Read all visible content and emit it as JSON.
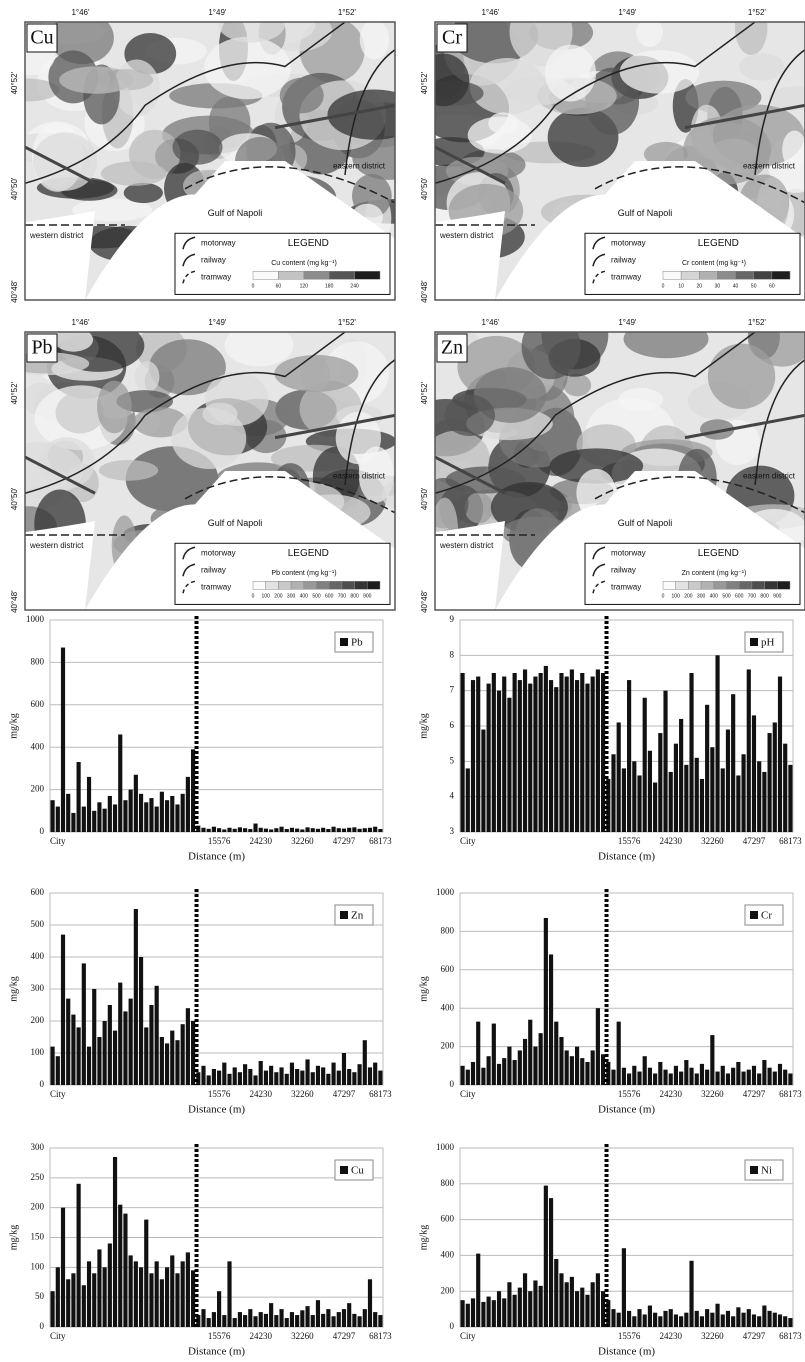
{
  "maps": [
    {
      "label": "Cu",
      "x_ticks": [
        "1°46'",
        "1°49'",
        "1°52'"
      ],
      "y_ticks": [
        "40°52'",
        "40°50'",
        "40°48'"
      ],
      "places": [
        "eastern district",
        "western district",
        "Gulf of Napoli"
      ],
      "legend": {
        "title": "LEGEND",
        "items": [
          "motorway",
          "railway",
          "tramway"
        ],
        "scale_title": "Cu content (mg kg⁻¹)",
        "scale": [
          "0",
          "60",
          "120",
          "180",
          "240"
        ]
      }
    },
    {
      "label": "Cr",
      "x_ticks": [
        "1°46'",
        "1°49'",
        "1°52'"
      ],
      "y_ticks": [
        "40°52'",
        "40°50'",
        "40°48'"
      ],
      "places": [
        "eastern district",
        "western district",
        "Gulf of Napoli"
      ],
      "legend": {
        "title": "LEGEND",
        "items": [
          "motorway",
          "railway",
          "tramway"
        ],
        "scale_title": "Cr content (mg kg⁻¹)",
        "scale": [
          "0",
          "10",
          "20",
          "30",
          "40",
          "50",
          "60"
        ]
      }
    },
    {
      "label": "Pb",
      "x_ticks": [
        "1°46'",
        "1°49'",
        "1°52'"
      ],
      "y_ticks": [
        "40°52'",
        "40°50'",
        "40°48'"
      ],
      "places": [
        "eastern district",
        "western district",
        "Gulf of Napoli"
      ],
      "legend": {
        "title": "LEGEND",
        "items": [
          "motorway",
          "railway",
          "tramway"
        ],
        "scale_title": "Pb content (mg kg⁻¹)",
        "scale": [
          "0",
          "100",
          "200",
          "300",
          "400",
          "500",
          "600",
          "700",
          "800",
          "900"
        ]
      }
    },
    {
      "label": "Zn",
      "x_ticks": [
        "1°46'",
        "1°49'",
        "1°52'"
      ],
      "y_ticks": [
        "40°52'",
        "40°50'",
        "40°48'"
      ],
      "places": [
        "eastern district",
        "western district",
        "Gulf of Napoli"
      ],
      "legend": {
        "title": "LEGEND",
        "items": [
          "motorway",
          "railway",
          "tramway"
        ],
        "scale_title": "Zn content (mg kg⁻¹)",
        "scale": [
          "0",
          "100",
          "200",
          "300",
          "400",
          "500",
          "600",
          "700",
          "800",
          "900"
        ]
      }
    }
  ],
  "chart_data": [
    {
      "type": "bar",
      "x_label": "Distance (m)",
      "y_label": "mg/kg",
      "ylim": [
        0,
        1000
      ],
      "yticks": [
        0,
        200,
        400,
        600,
        800,
        1000
      ],
      "grid": true,
      "categories": [
        null,
        "City",
        null,
        null,
        null,
        null,
        null,
        null,
        null,
        null,
        null,
        null,
        null,
        null,
        null,
        null,
        null,
        null,
        null,
        null,
        null,
        null,
        null,
        null,
        null,
        null,
        null,
        null,
        null,
        null,
        null,
        null,
        "15576",
        null,
        null,
        null,
        null,
        null,
        null,
        null,
        "24230",
        null,
        null,
        null,
        null,
        null,
        null,
        null,
        "32260",
        null,
        null,
        null,
        null,
        null,
        null,
        null,
        "47297",
        null,
        null,
        null,
        null,
        null,
        null,
        "68173"
      ],
      "series": [
        {
          "name": "Pb",
          "color": "#111111",
          "values": [
            150,
            120,
            870,
            180,
            90,
            330,
            120,
            260,
            100,
            140,
            110,
            170,
            130,
            460,
            150,
            200,
            270,
            180,
            140,
            160,
            120,
            190,
            150,
            170,
            130,
            180,
            260,
            390,
            30,
            20,
            15,
            25,
            18,
            12,
            20,
            15,
            22,
            18,
            14,
            40,
            20,
            16,
            12,
            18,
            25,
            14,
            20,
            16,
            12,
            22,
            18,
            15,
            20,
            14,
            25,
            18,
            16,
            20,
            22,
            15,
            18,
            20,
            25,
            14
          ]
        }
      ]
    },
    {
      "type": "bar",
      "x_label": "Distance (m)",
      "y_label": "mg/kg",
      "ylim": [
        3,
        9
      ],
      "yticks": [
        3,
        4,
        5,
        6,
        7,
        8,
        9
      ],
      "grid": true,
      "categories": [
        null,
        "City",
        null,
        null,
        null,
        null,
        null,
        null,
        null,
        null,
        null,
        null,
        null,
        null,
        null,
        null,
        null,
        null,
        null,
        null,
        null,
        null,
        null,
        null,
        null,
        null,
        null,
        null,
        null,
        null,
        null,
        null,
        "15576",
        null,
        null,
        null,
        null,
        null,
        null,
        null,
        "24230",
        null,
        null,
        null,
        null,
        null,
        null,
        null,
        "32260",
        null,
        null,
        null,
        null,
        null,
        null,
        null,
        "47297",
        null,
        null,
        null,
        null,
        null,
        null,
        "68173"
      ],
      "series": [
        {
          "name": "pH",
          "color": "#111111",
          "values": [
            7.5,
            4.8,
            7.3,
            7.4,
            5.9,
            7.2,
            7.5,
            7.0,
            7.4,
            6.8,
            7.5,
            7.3,
            7.6,
            7.2,
            7.4,
            7.5,
            7.7,
            7.3,
            7.1,
            7.5,
            7.4,
            7.6,
            7.3,
            7.5,
            7.2,
            7.4,
            7.6,
            7.5,
            4.5,
            5.2,
            6.1,
            4.8,
            7.3,
            5.0,
            4.6,
            6.8,
            5.3,
            4.4,
            5.8,
            7.0,
            4.7,
            5.5,
            6.2,
            4.9,
            7.5,
            5.1,
            4.5,
            6.6,
            5.4,
            8.0,
            4.8,
            5.9,
            6.9,
            4.6,
            5.2,
            7.6,
            6.3,
            5.0,
            4.7,
            5.8,
            6.1,
            7.4,
            5.5,
            4.9
          ]
        }
      ]
    },
    {
      "type": "bar",
      "x_label": "Distance (m)",
      "y_label": "mg/kg",
      "ylim": [
        0,
        600
      ],
      "yticks": [
        0,
        100,
        200,
        300,
        400,
        500,
        600
      ],
      "grid": true,
      "categories": [
        null,
        "City",
        null,
        null,
        null,
        null,
        null,
        null,
        null,
        null,
        null,
        null,
        null,
        null,
        null,
        null,
        null,
        null,
        null,
        null,
        null,
        null,
        null,
        null,
        null,
        null,
        null,
        null,
        null,
        null,
        null,
        null,
        "15576",
        null,
        null,
        null,
        null,
        null,
        null,
        null,
        "24230",
        null,
        null,
        null,
        null,
        null,
        null,
        null,
        "32260",
        null,
        null,
        null,
        null,
        null,
        null,
        null,
        "47297",
        null,
        null,
        null,
        null,
        null,
        null,
        "68173"
      ],
      "series": [
        {
          "name": "Zn",
          "color": "#111111",
          "values": [
            120,
            90,
            470,
            270,
            220,
            180,
            380,
            120,
            300,
            150,
            200,
            250,
            170,
            320,
            230,
            270,
            550,
            400,
            180,
            250,
            310,
            150,
            130,
            170,
            140,
            190,
            240,
            200,
            40,
            60,
            30,
            50,
            45,
            70,
            35,
            55,
            40,
            65,
            50,
            30,
            75,
            45,
            60,
            40,
            55,
            35,
            70,
            50,
            45,
            80,
            40,
            60,
            55,
            35,
            70,
            45,
            100,
            50,
            40,
            65,
            140,
            55,
            70,
            45
          ]
        }
      ]
    },
    {
      "type": "bar",
      "x_label": "Distance (m)",
      "y_label": "mg/kg",
      "ylim": [
        0,
        1000
      ],
      "yticks": [
        0,
        200,
        400,
        600,
        800,
        1000
      ],
      "grid": true,
      "categories": [
        null,
        "City",
        null,
        null,
        null,
        null,
        null,
        null,
        null,
        null,
        null,
        null,
        null,
        null,
        null,
        null,
        null,
        null,
        null,
        null,
        null,
        null,
        null,
        null,
        null,
        null,
        null,
        null,
        null,
        null,
        null,
        null,
        "15576",
        null,
        null,
        null,
        null,
        null,
        null,
        null,
        "24230",
        null,
        null,
        null,
        null,
        null,
        null,
        null,
        "32260",
        null,
        null,
        null,
        null,
        null,
        null,
        null,
        "47297",
        null,
        null,
        null,
        null,
        null,
        null,
        "68173"
      ],
      "series": [
        {
          "name": "Cr",
          "color": "#111111",
          "values": [
            100,
            80,
            120,
            330,
            90,
            150,
            320,
            110,
            140,
            200,
            130,
            180,
            240,
            340,
            200,
            270,
            870,
            680,
            330,
            250,
            180,
            150,
            200,
            140,
            120,
            180,
            400,
            160,
            120,
            80,
            330,
            90,
            60,
            100,
            70,
            150,
            90,
            60,
            120,
            80,
            60,
            100,
            70,
            130,
            90,
            60,
            110,
            80,
            260,
            70,
            100,
            60,
            90,
            120,
            70,
            80,
            100,
            60,
            130,
            90,
            70,
            110,
            80,
            60
          ]
        }
      ]
    },
    {
      "type": "bar",
      "x_label": "Distance (m)",
      "y_label": "mg/kg",
      "ylim": [
        0,
        300
      ],
      "yticks": [
        0,
        50,
        100,
        150,
        200,
        250,
        300
      ],
      "grid": true,
      "categories": [
        null,
        "City",
        null,
        null,
        null,
        null,
        null,
        null,
        null,
        null,
        null,
        null,
        null,
        null,
        null,
        null,
        null,
        null,
        null,
        null,
        null,
        null,
        null,
        null,
        null,
        null,
        null,
        null,
        null,
        null,
        null,
        null,
        "15576",
        null,
        null,
        null,
        null,
        null,
        null,
        null,
        "24230",
        null,
        null,
        null,
        null,
        null,
        null,
        null,
        "32260",
        null,
        null,
        null,
        null,
        null,
        null,
        null,
        "47297",
        null,
        null,
        null,
        null,
        null,
        null,
        "68173"
      ],
      "series": [
        {
          "name": "Cu",
          "color": "#111111",
          "values": [
            60,
            100,
            200,
            80,
            90,
            240,
            70,
            110,
            90,
            130,
            100,
            140,
            285,
            205,
            190,
            120,
            110,
            100,
            180,
            90,
            110,
            80,
            100,
            120,
            90,
            110,
            125,
            95,
            20,
            30,
            15,
            25,
            60,
            20,
            110,
            15,
            25,
            20,
            30,
            18,
            25,
            22,
            40,
            20,
            30,
            15,
            25,
            20,
            28,
            35,
            20,
            45,
            22,
            30,
            18,
            25,
            30,
            40,
            22,
            18,
            30,
            80,
            25,
            20
          ]
        }
      ]
    },
    {
      "type": "bar",
      "x_label": "Distance (m)",
      "y_label": "mg/kg",
      "ylim": [
        0,
        1000
      ],
      "yticks": [
        0,
        200,
        400,
        600,
        800,
        1000
      ],
      "grid": true,
      "categories": [
        null,
        "City",
        null,
        null,
        null,
        null,
        null,
        null,
        null,
        null,
        null,
        null,
        null,
        null,
        null,
        null,
        null,
        null,
        null,
        null,
        null,
        null,
        null,
        null,
        null,
        null,
        null,
        null,
        null,
        null,
        null,
        null,
        "15576",
        null,
        null,
        null,
        null,
        null,
        null,
        null,
        "24230",
        null,
        null,
        null,
        null,
        null,
        null,
        null,
        "32260",
        null,
        null,
        null,
        null,
        null,
        null,
        null,
        "47297",
        null,
        null,
        null,
        null,
        null,
        null,
        "68173"
      ],
      "series": [
        {
          "name": "Ni",
          "color": "#111111",
          "values": [
            150,
            130,
            160,
            410,
            140,
            170,
            150,
            200,
            160,
            250,
            180,
            220,
            300,
            200,
            260,
            230,
            790,
            720,
            380,
            300,
            250,
            280,
            200,
            220,
            180,
            250,
            300,
            200,
            150,
            100,
            80,
            440,
            90,
            60,
            100,
            70,
            120,
            80,
            60,
            90,
            100,
            70,
            60,
            80,
            370,
            90,
            60,
            100,
            80,
            130,
            70,
            90,
            60,
            110,
            80,
            100,
            70,
            60,
            120,
            90,
            80,
            70,
            60,
            50
          ]
        }
      ]
    }
  ]
}
